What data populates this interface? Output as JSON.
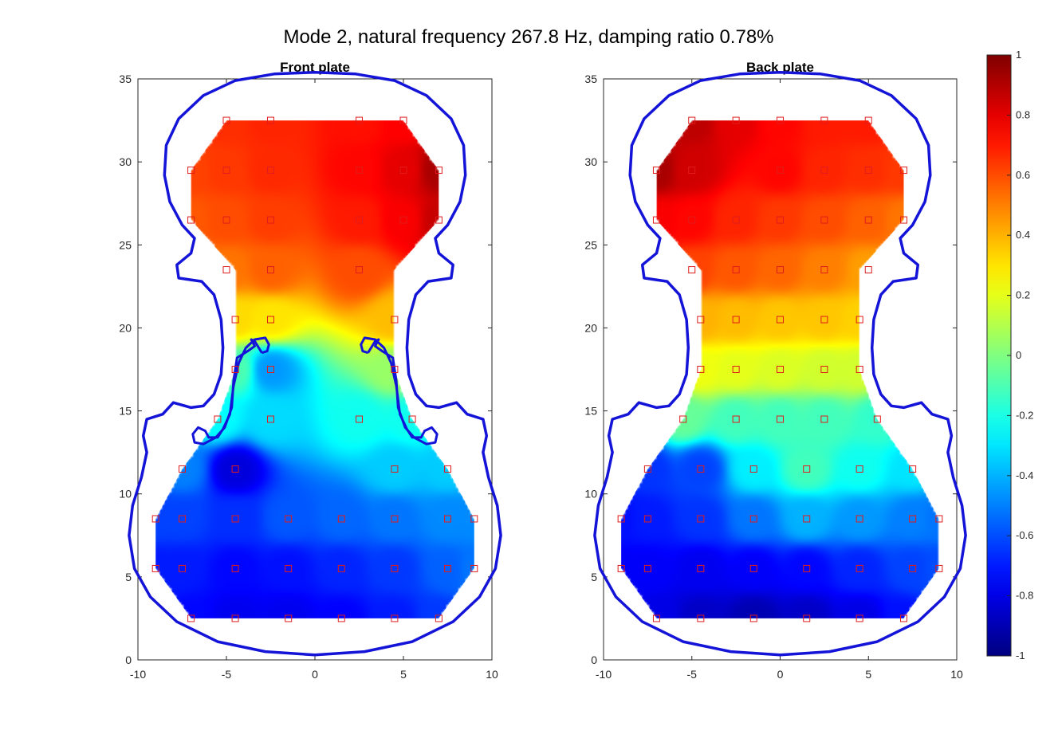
{
  "figure": {
    "title": "Mode 2, natural frequency 267.8 Hz, damping ratio 0.78%"
  },
  "chart_data": [
    {
      "type": "heatmap",
      "title": "Front plate",
      "xlim": [
        -10,
        10
      ],
      "ylim": [
        0,
        35
      ],
      "x_ticks": [
        "-10",
        "-5",
        "0",
        "5",
        "10"
      ],
      "y_ticks": [
        "0",
        "5",
        "10",
        "15",
        "20",
        "25",
        "30",
        "35"
      ],
      "colormap": "jet",
      "clim": [
        -1,
        1
      ],
      "grid": false,
      "points": [
        [
          -5,
          32.5,
          0.66
        ],
        [
          -2.5,
          32.5,
          0.68
        ],
        [
          2.5,
          32.5,
          0.72
        ],
        [
          5,
          32.5,
          0.75
        ],
        [
          -7,
          29.5,
          0.62
        ],
        [
          -5,
          29.5,
          0.64
        ],
        [
          -2.5,
          29.5,
          0.67
        ],
        [
          2.5,
          29.5,
          0.74
        ],
        [
          5,
          29.5,
          0.8
        ],
        [
          7,
          29.5,
          0.92
        ],
        [
          -7,
          26.5,
          0.58
        ],
        [
          -5,
          26.5,
          0.6
        ],
        [
          -2.5,
          26.5,
          0.63
        ],
        [
          2.5,
          26.5,
          0.7
        ],
        [
          5,
          26.5,
          0.76
        ],
        [
          7,
          26.5,
          0.86
        ],
        [
          -5,
          23.5,
          0.52
        ],
        [
          -2.5,
          23.5,
          0.56
        ],
        [
          2.5,
          23.5,
          0.6
        ],
        [
          -4.5,
          20.5,
          0.32
        ],
        [
          -2.5,
          20.5,
          0.3
        ],
        [
          4.5,
          20.5,
          0.38
        ],
        [
          -4.5,
          17.5,
          -0.1
        ],
        [
          -2.5,
          17.5,
          -0.45
        ],
        [
          4.5,
          17.5,
          0.05
        ],
        [
          -5.5,
          14.5,
          -0.25
        ],
        [
          -2.5,
          14.5,
          -0.32
        ],
        [
          2.5,
          14.5,
          -0.22
        ],
        [
          5.5,
          14.5,
          -0.22
        ],
        [
          -7.5,
          11.5,
          -0.5
        ],
        [
          -4.5,
          11.5,
          -0.82
        ],
        [
          4.5,
          11.5,
          -0.35
        ],
        [
          7.5,
          11.5,
          -0.35
        ],
        [
          -9,
          8.5,
          -0.62
        ],
        [
          -7.5,
          8.5,
          -0.62
        ],
        [
          -4.5,
          8.5,
          -0.66
        ],
        [
          -1.5,
          8.5,
          -0.58
        ],
        [
          1.5,
          8.5,
          -0.55
        ],
        [
          4.5,
          8.5,
          -0.52
        ],
        [
          7.5,
          8.5,
          -0.48
        ],
        [
          9,
          8.5,
          -0.48
        ],
        [
          -9,
          5.5,
          -0.7
        ],
        [
          -7.5,
          5.5,
          -0.7
        ],
        [
          -4.5,
          5.5,
          -0.74
        ],
        [
          -1.5,
          5.5,
          -0.72
        ],
        [
          1.5,
          5.5,
          -0.68
        ],
        [
          4.5,
          5.5,
          -0.64
        ],
        [
          7.5,
          5.5,
          -0.56
        ],
        [
          9,
          5.5,
          -0.52
        ],
        [
          -7,
          2.5,
          -0.74
        ],
        [
          -4.5,
          2.5,
          -0.78
        ],
        [
          -1.5,
          2.5,
          -0.78
        ],
        [
          1.5,
          2.5,
          -0.75
        ],
        [
          4.5,
          2.5,
          -0.7
        ],
        [
          7,
          2.5,
          -0.64
        ]
      ]
    },
    {
      "type": "heatmap",
      "title": "Back plate",
      "xlim": [
        -10,
        10
      ],
      "ylim": [
        0,
        35
      ],
      "x_ticks": [
        "-10",
        "-5",
        "0",
        "5",
        "10"
      ],
      "y_ticks": [
        "0",
        "5",
        "10",
        "15",
        "20",
        "25",
        "30",
        "35"
      ],
      "colormap": "jet",
      "clim": [
        -1,
        1
      ],
      "grid": false,
      "points": [
        [
          -5,
          32.5,
          0.88
        ],
        [
          -2.5,
          32.5,
          0.8
        ],
        [
          0,
          32.5,
          0.74
        ],
        [
          2.5,
          32.5,
          0.7
        ],
        [
          5,
          32.5,
          0.7
        ],
        [
          -7,
          29.5,
          0.92
        ],
        [
          -5,
          29.5,
          0.84
        ],
        [
          0,
          29.5,
          0.74
        ],
        [
          2.5,
          29.5,
          0.68
        ],
        [
          5,
          29.5,
          0.66
        ],
        [
          7,
          29.5,
          0.64
        ],
        [
          -7,
          26.5,
          0.76
        ],
        [
          -5,
          26.5,
          0.74
        ],
        [
          -2.5,
          26.5,
          0.68
        ],
        [
          0,
          26.5,
          0.64
        ],
        [
          2.5,
          26.5,
          0.6
        ],
        [
          5,
          26.5,
          0.56
        ],
        [
          7,
          26.5,
          0.52
        ],
        [
          -5,
          23.5,
          0.62
        ],
        [
          -2.5,
          23.5,
          0.58
        ],
        [
          0,
          23.5,
          0.55
        ],
        [
          2.5,
          23.5,
          0.5
        ],
        [
          5,
          23.5,
          0.44
        ],
        [
          -4.5,
          20.5,
          0.4
        ],
        [
          -2.5,
          20.5,
          0.38
        ],
        [
          0,
          20.5,
          0.36
        ],
        [
          2.5,
          20.5,
          0.36
        ],
        [
          4.5,
          20.5,
          0.34
        ],
        [
          -4.5,
          17.5,
          0.22
        ],
        [
          -2.5,
          17.5,
          0.2
        ],
        [
          0,
          17.5,
          0.18
        ],
        [
          2.5,
          17.5,
          0.16
        ],
        [
          4.5,
          17.5,
          0.16
        ],
        [
          -5.5,
          14.5,
          -0.05
        ],
        [
          -2.5,
          14.5,
          -0.12
        ],
        [
          0,
          14.5,
          -0.12
        ],
        [
          2.5,
          14.5,
          -0.12
        ],
        [
          5.5,
          14.5,
          -0.15
        ],
        [
          -7.5,
          11.5,
          -0.65
        ],
        [
          -4.5,
          11.5,
          -0.62
        ],
        [
          -1.5,
          11.5,
          -0.28
        ],
        [
          1.5,
          11.5,
          -0.12
        ],
        [
          4.5,
          11.5,
          -0.22
        ],
        [
          7.5,
          11.5,
          -0.3
        ],
        [
          -9,
          8.5,
          -0.72
        ],
        [
          -7.5,
          8.5,
          -0.7
        ],
        [
          -4.5,
          8.5,
          -0.65
        ],
        [
          -1.5,
          8.5,
          -0.52
        ],
        [
          1.5,
          8.5,
          -0.4
        ],
        [
          4.5,
          8.5,
          -0.45
        ],
        [
          7.5,
          8.5,
          -0.5
        ],
        [
          9,
          8.5,
          -0.52
        ],
        [
          -9,
          5.5,
          -0.76
        ],
        [
          -7.5,
          5.5,
          -0.76
        ],
        [
          -4.5,
          5.5,
          -0.78
        ],
        [
          -1.5,
          5.5,
          -0.76
        ],
        [
          1.5,
          5.5,
          -0.74
        ],
        [
          4.5,
          5.5,
          -0.68
        ],
        [
          7.5,
          5.5,
          -0.62
        ],
        [
          9,
          5.5,
          -0.6
        ],
        [
          -7,
          2.5,
          -0.8
        ],
        [
          -4.5,
          2.5,
          -0.86
        ],
        [
          -1.5,
          2.5,
          -0.9
        ],
        [
          1.5,
          2.5,
          -0.86
        ],
        [
          4.5,
          2.5,
          -0.8
        ],
        [
          7,
          2.5,
          -0.72
        ]
      ]
    }
  ],
  "colorbar": {
    "ticks": [
      "1",
      "0.8",
      "0.6",
      "0.4",
      "0.2",
      "0",
      "-0.2",
      "-0.4",
      "-0.6",
      "-0.8",
      "-1"
    ],
    "values": [
      1,
      0.8,
      0.6,
      0.4,
      0.2,
      0,
      -0.2,
      -0.4,
      -0.6,
      -0.8,
      -1
    ]
  },
  "style": {
    "outline_color": "#1414d8",
    "marker_color": "#e01c1c",
    "axis_color": "#262626"
  }
}
